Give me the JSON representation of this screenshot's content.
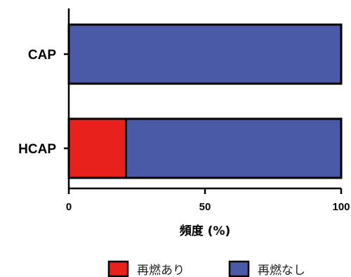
{
  "chart_data": {
    "type": "bar",
    "orientation": "horizontal",
    "stacked": true,
    "categories": [
      "CAP",
      "HCAP"
    ],
    "series": [
      {
        "name": "再燃あり",
        "values": [
          0,
          21
        ],
        "color": "#e8211c"
      },
      {
        "name": "再燃なし",
        "values": [
          100,
          79
        ],
        "color": "#4a5aa6"
      }
    ],
    "xlabel": "頻度 (%)",
    "ylabel": "",
    "xlim": [
      0,
      100
    ],
    "xticks": [
      "0",
      "50",
      "100"
    ],
    "legend_position": "bottom-right",
    "grid": false
  }
}
